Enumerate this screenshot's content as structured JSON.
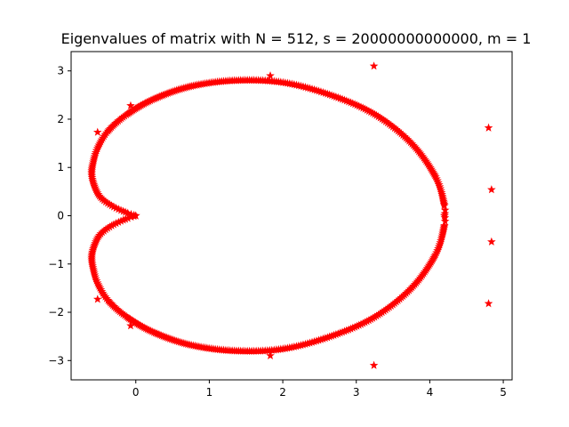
{
  "chart_data": {
    "type": "scatter",
    "title": "Eigenvalues of matrix with N = 512, s = 20000000000000, m = 1",
    "xlabel": "",
    "ylabel": "",
    "xlim": [
      -0.88,
      5.12
    ],
    "ylim": [
      -3.4,
      3.4
    ],
    "xticks": [
      0,
      1,
      2,
      3,
      4,
      5
    ],
    "yticks": [
      -3,
      -2,
      -1,
      0,
      1,
      2,
      3
    ],
    "grid": false,
    "legend": "none",
    "marker": "star",
    "color": "#ff0000",
    "curve": {
      "description_points_per_half": 256,
      "params": [
        [
          0.0,
          0.0,
          0.0
        ],
        [
          0.06,
          -0.12,
          0.06
        ],
        [
          0.18,
          -0.32,
          0.2
        ],
        [
          0.3,
          -0.48,
          0.38
        ],
        [
          0.42,
          -0.56,
          0.6
        ],
        [
          0.55,
          -0.6,
          0.85
        ],
        [
          0.68,
          -0.58,
          1.1
        ],
        [
          0.82,
          -0.52,
          1.4
        ],
        [
          1.0,
          -0.38,
          1.75
        ],
        [
          1.25,
          -0.12,
          2.1
        ],
        [
          1.6,
          0.25,
          2.42
        ],
        [
          2.0,
          0.75,
          2.68
        ],
        [
          2.4,
          1.35,
          2.8
        ],
        [
          2.8,
          2.0,
          2.76
        ],
        [
          3.2,
          2.65,
          2.5
        ],
        [
          3.6,
          3.25,
          2.1
        ],
        [
          4.0,
          3.75,
          1.5
        ],
        [
          4.4,
          4.08,
          0.8
        ],
        [
          4.7,
          4.2,
          0.2
        ],
        [
          4.75,
          4.2,
          0.0
        ]
      ]
    },
    "outliers": [
      {
        "x": 0.0,
        "y": 0.0
      },
      {
        "x": -0.07,
        "y": 2.28
      },
      {
        "x": -0.07,
        "y": -2.28
      },
      {
        "x": -0.52,
        "y": 1.73
      },
      {
        "x": -0.52,
        "y": -1.73
      },
      {
        "x": 1.83,
        "y": 2.9
      },
      {
        "x": 1.83,
        "y": -2.9
      },
      {
        "x": 3.24,
        "y": 3.1
      },
      {
        "x": 3.24,
        "y": -3.1
      },
      {
        "x": 4.8,
        "y": 1.82
      },
      {
        "x": 4.8,
        "y": -1.82
      },
      {
        "x": 4.84,
        "y": 0.54
      },
      {
        "x": 4.84,
        "y": -0.54
      }
    ]
  }
}
